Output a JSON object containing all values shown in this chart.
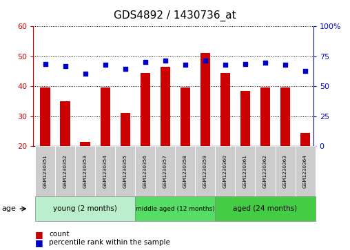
{
  "title": "GDS4892 / 1430736_at",
  "samples": [
    "GSM1230351",
    "GSM1230352",
    "GSM1230353",
    "GSM1230354",
    "GSM1230355",
    "GSM1230356",
    "GSM1230357",
    "GSM1230358",
    "GSM1230359",
    "GSM1230360",
    "GSM1230361",
    "GSM1230362",
    "GSM1230363",
    "GSM1230364"
  ],
  "counts": [
    39.5,
    35.0,
    21.5,
    39.5,
    31.0,
    44.5,
    46.5,
    39.5,
    51.0,
    44.5,
    38.5,
    39.5,
    39.5,
    24.5
  ],
  "percentiles": [
    68.5,
    67.0,
    60.5,
    68.0,
    64.5,
    70.0,
    71.5,
    68.0,
    71.5,
    68.0,
    68.5,
    69.5,
    68.0,
    62.5
  ],
  "bar_color": "#cc0000",
  "dot_color": "#0000cc",
  "ylim_left": [
    20,
    60
  ],
  "ylim_right": [
    0,
    100
  ],
  "yticks_left": [
    20,
    30,
    40,
    50,
    60
  ],
  "yticks_right": [
    0,
    25,
    50,
    75,
    100
  ],
  "ytick_labels_right": [
    "0",
    "25",
    "50",
    "75",
    "100%"
  ],
  "groups": [
    {
      "label": "young (2 months)",
      "start": 0,
      "end": 4,
      "color": "#bbf0bb"
    },
    {
      "label": "middle aged (12 months)",
      "start": 5,
      "end": 8,
      "color": "#55dd55"
    },
    {
      "label": "aged (24 months)",
      "start": 9,
      "end": 13,
      "color": "#44cc44"
    }
  ],
  "age_label": "age",
  "legend_count": "count",
  "legend_percentile": "percentile rank within the sample",
  "bar_width": 0.5,
  "xlim": [
    -0.6,
    13.4
  ]
}
